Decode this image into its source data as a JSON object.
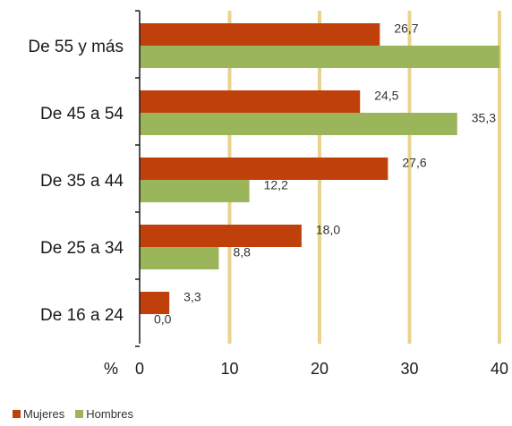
{
  "chart_data": {
    "type": "bar",
    "orientation": "horizontal",
    "categories": [
      "De 55 y más",
      "De 45 a 54",
      "De 35 a 44",
      "De 25 a 34",
      "De 16 a 24"
    ],
    "series": [
      {
        "name": "Mujeres",
        "values": [
          26.7,
          24.5,
          27.6,
          18.0,
          3.3
        ],
        "labels": [
          "26,7",
          "24,5",
          "27,6",
          "18,0",
          "3,3"
        ],
        "color": "#c0400c"
      },
      {
        "name": "Hombres",
        "values": [
          40,
          35.3,
          12.2,
          8.8,
          0.0
        ],
        "labels": [
          "",
          "35,3",
          "12,2",
          "8,8",
          "0,0"
        ],
        "color": "#9bb55a"
      }
    ],
    "xlabel": "%",
    "xlim": [
      0,
      40
    ],
    "xticks": [
      "0",
      "10",
      "20",
      "30",
      "40"
    ],
    "gridlines": {
      "orientation": "vertical",
      "color": "#e8d48c"
    },
    "legend": "bottom-left"
  }
}
